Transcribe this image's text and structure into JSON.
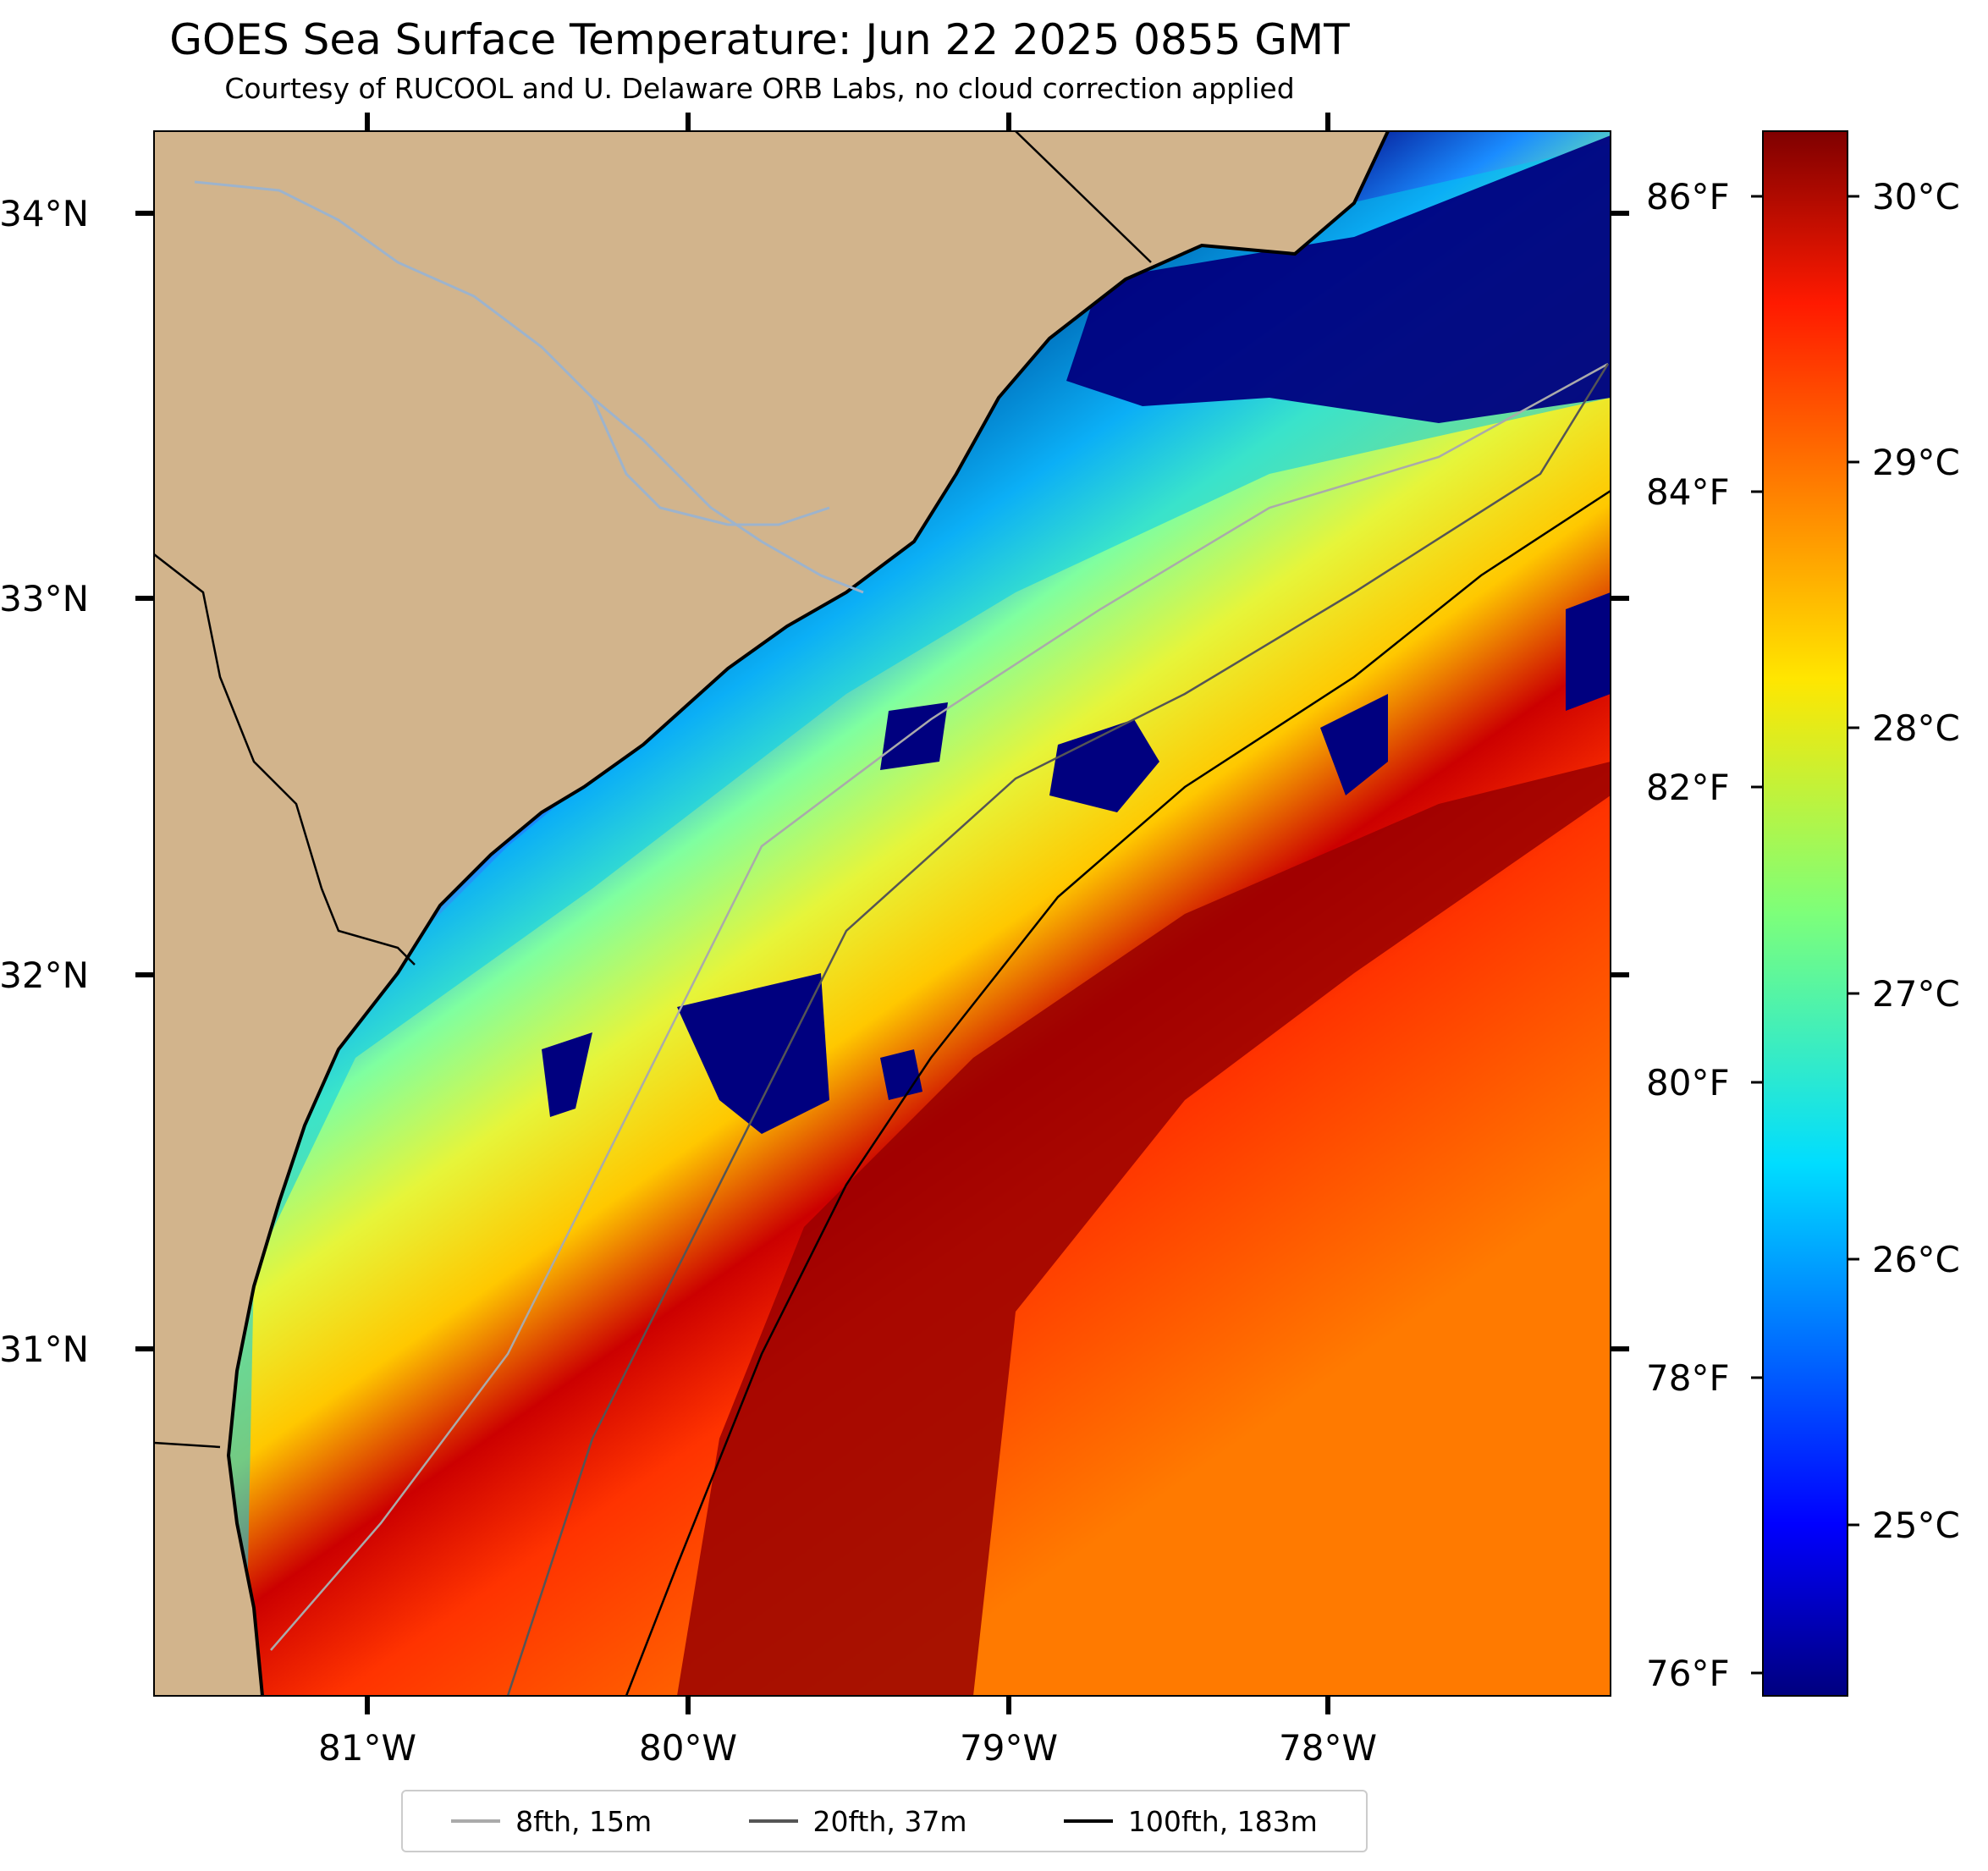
{
  "title": "GOES Sea Surface Temperature: Jun 22 2025 0855 GMT",
  "subtitle": "Courtesy of RUCOOL and U. Delaware ORB Labs, no cloud correction applied",
  "map": {
    "lat_labels": [
      "34°N",
      "33°N",
      "32°N",
      "31°N"
    ],
    "lon_labels": [
      "81°W",
      "80°W",
      "79°W",
      "78°W"
    ],
    "colors": {
      "land": "#d2b48c",
      "coast_white": "#ffffff",
      "rivers": "#9db3cc",
      "borders": "#000000"
    }
  },
  "colorbar": {
    "celsius_labels": [
      "30°C",
      "29°C",
      "28°C",
      "27°C",
      "26°C",
      "25°C"
    ],
    "fahrenheit_labels": [
      "86°F",
      "84°F",
      "82°F",
      "80°F",
      "78°F",
      "76°F"
    ],
    "colormap": "jet"
  },
  "legend": {
    "entries": [
      {
        "label": "8fth, 15m",
        "color": "#aaaaaa"
      },
      {
        "label": "20fth, 37m",
        "color": "#555555"
      },
      {
        "label": "100fth, 183m",
        "color": "#000000"
      }
    ]
  }
}
